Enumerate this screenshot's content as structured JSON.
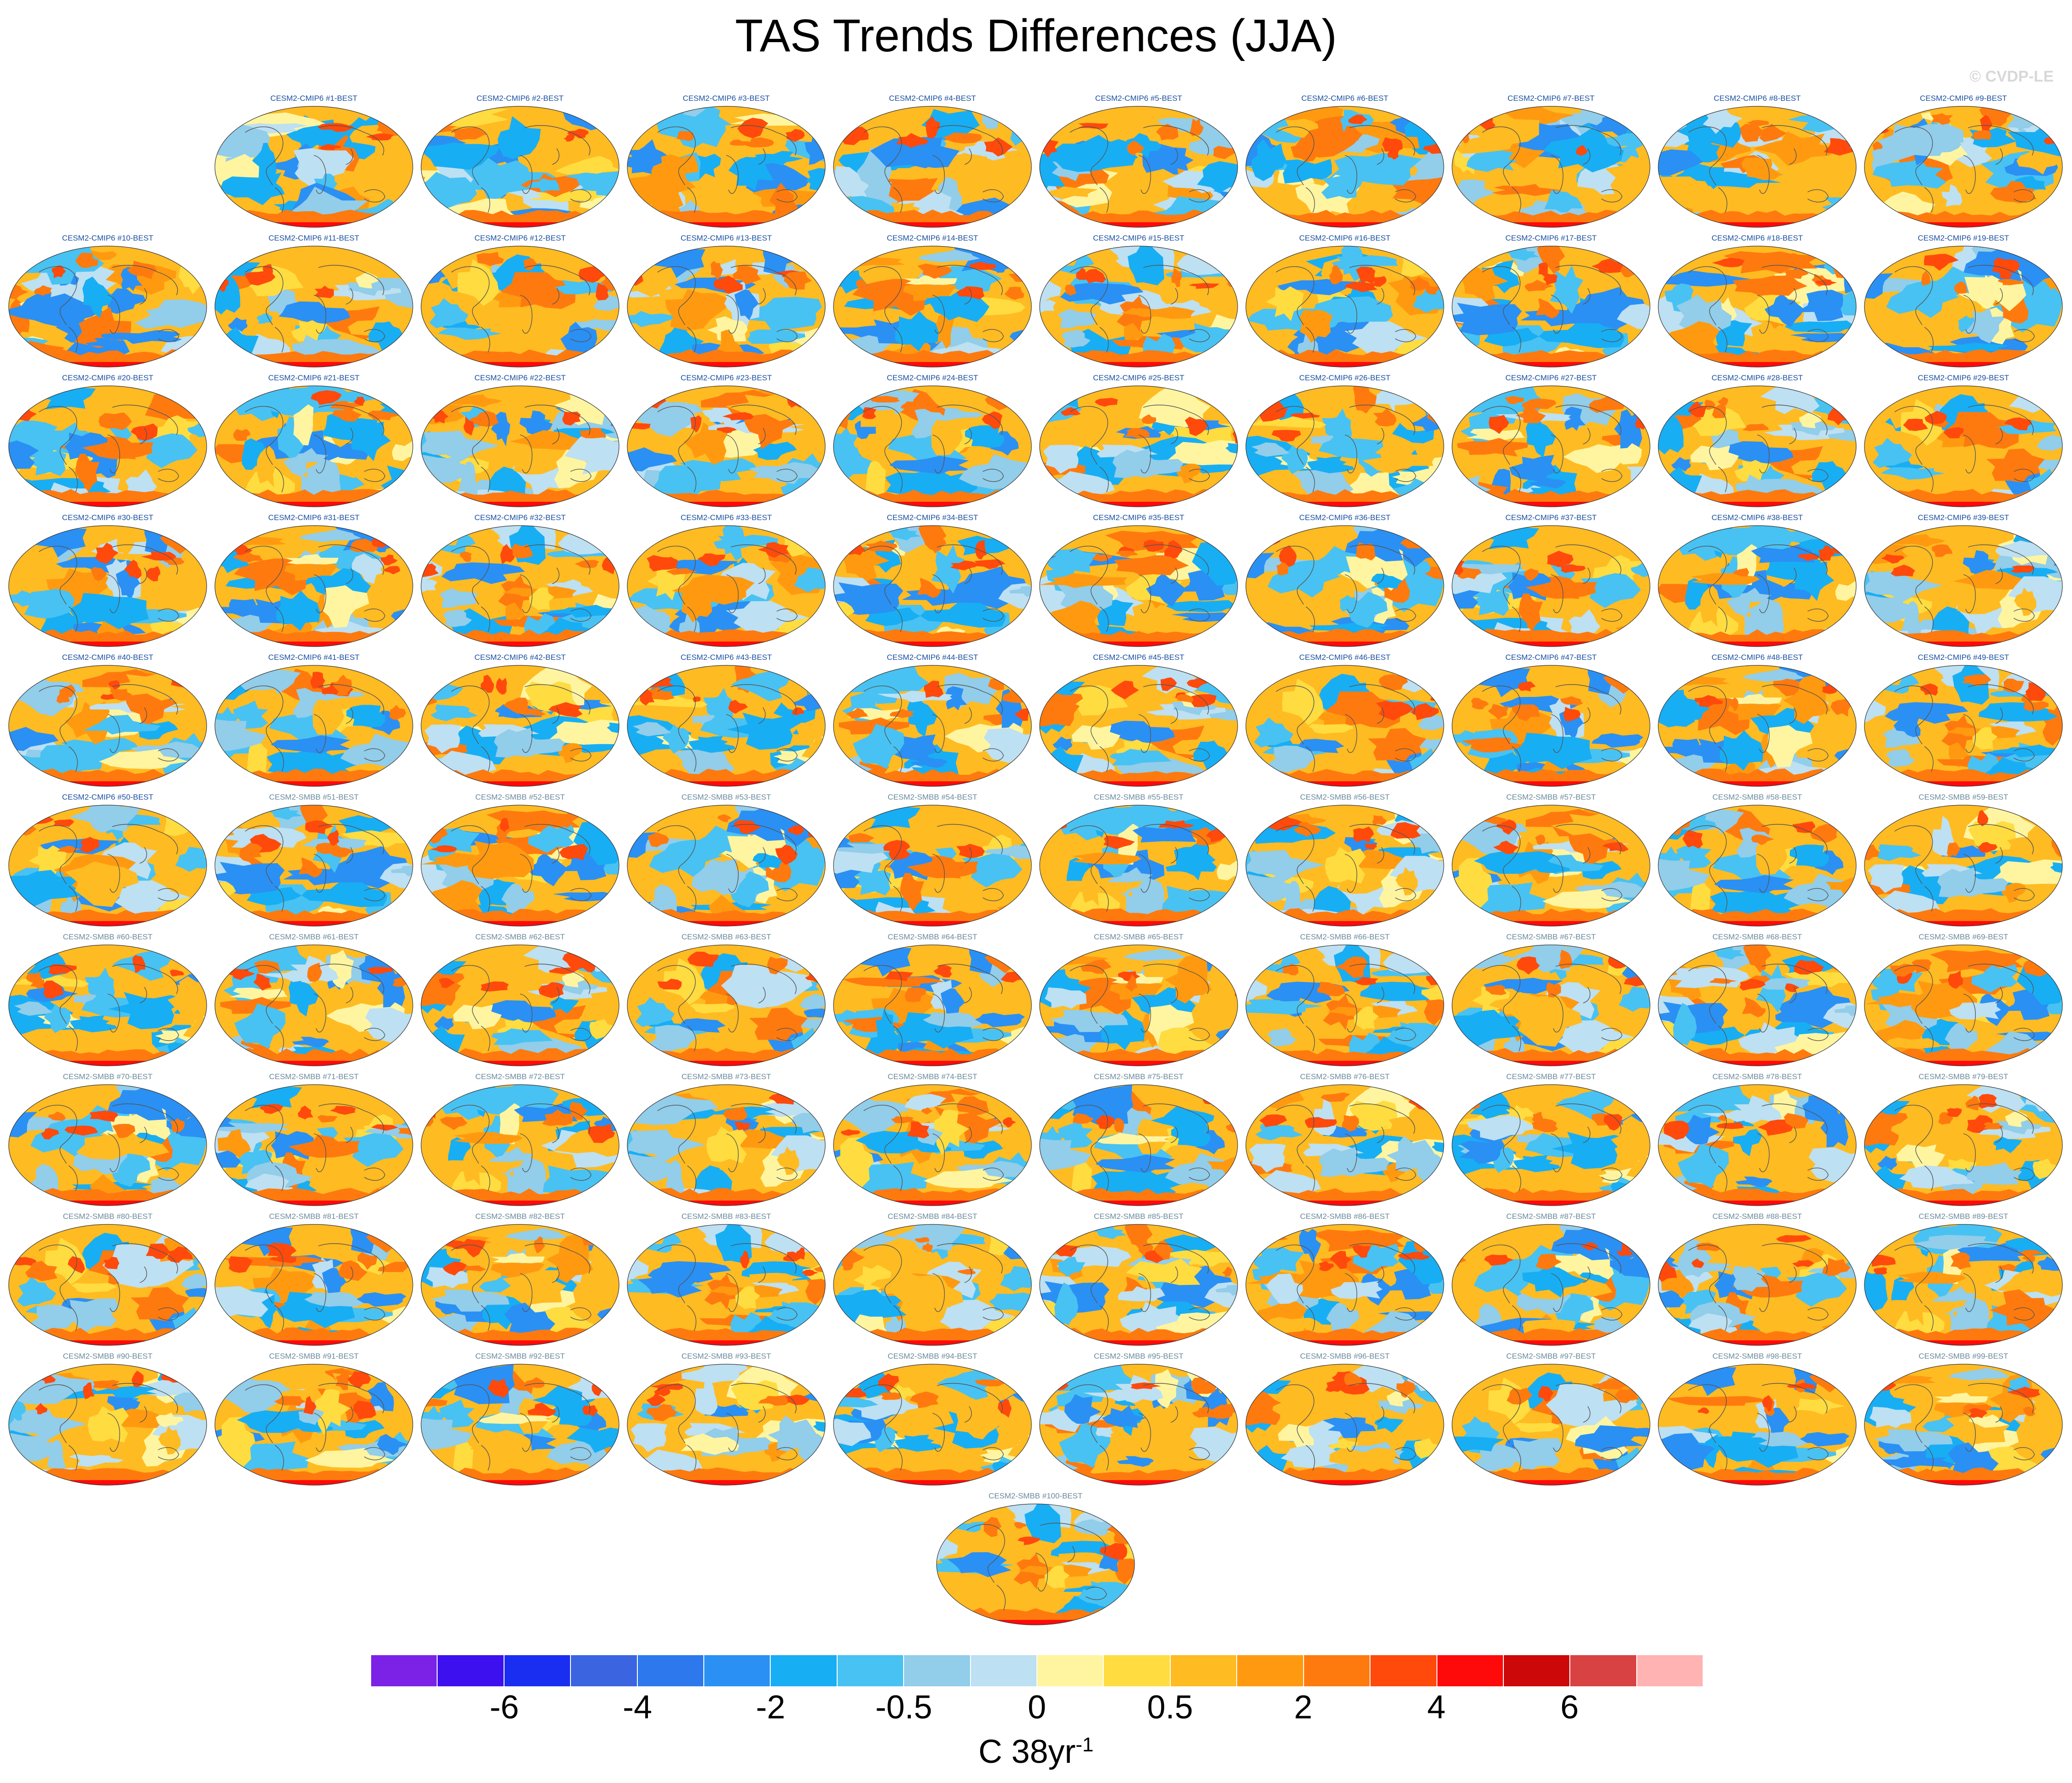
{
  "title": "TAS Trends Differences (JJA)",
  "watermark": "© CVDP-LE",
  "panels": [
    "CESM2-CMIP6 #1-BEST",
    "CESM2-CMIP6 #2-BEST",
    "CESM2-CMIP6 #3-BEST",
    "CESM2-CMIP6 #4-BEST",
    "CESM2-CMIP6 #5-BEST",
    "CESM2-CMIP6 #6-BEST",
    "CESM2-CMIP6 #7-BEST",
    "CESM2-CMIP6 #8-BEST",
    "CESM2-CMIP6 #9-BEST",
    "CESM2-CMIP6 #10-BEST",
    "CESM2-CMIP6 #11-BEST",
    "CESM2-CMIP6 #12-BEST",
    "CESM2-CMIP6 #13-BEST",
    "CESM2-CMIP6 #14-BEST",
    "CESM2-CMIP6 #15-BEST",
    "CESM2-CMIP6 #16-BEST",
    "CESM2-CMIP6 #17-BEST",
    "CESM2-CMIP6 #18-BEST",
    "CESM2-CMIP6 #19-BEST",
    "CESM2-CMIP6 #20-BEST",
    "CESM2-CMIP6 #21-BEST",
    "CESM2-CMIP6 #22-BEST",
    "CESM2-CMIP6 #23-BEST",
    "CESM2-CMIP6 #24-BEST",
    "CESM2-CMIP6 #25-BEST",
    "CESM2-CMIP6 #26-BEST",
    "CESM2-CMIP6 #27-BEST",
    "CESM2-CMIP6 #28-BEST",
    "CESM2-CMIP6 #29-BEST",
    "CESM2-CMIP6 #30-BEST",
    "CESM2-CMIP6 #31-BEST",
    "CESM2-CMIP6 #32-BEST",
    "CESM2-CMIP6 #33-BEST",
    "CESM2-CMIP6 #34-BEST",
    "CESM2-CMIP6 #35-BEST",
    "CESM2-CMIP6 #36-BEST",
    "CESM2-CMIP6 #37-BEST",
    "CESM2-CMIP6 #38-BEST",
    "CESM2-CMIP6 #39-BEST",
    "CESM2-CMIP6 #40-BEST",
    "CESM2-CMIP6 #41-BEST",
    "CESM2-CMIP6 #42-BEST",
    "CESM2-CMIP6 #43-BEST",
    "CESM2-CMIP6 #44-BEST",
    "CESM2-CMIP6 #45-BEST",
    "CESM2-CMIP6 #46-BEST",
    "CESM2-CMIP6 #47-BEST",
    "CESM2-CMIP6 #48-BEST",
    "CESM2-CMIP6 #49-BEST",
    "CESM2-CMIP6 #50-BEST",
    "CESM2-SMBB #51-BEST",
    "CESM2-SMBB #52-BEST",
    "CESM2-SMBB #53-BEST",
    "CESM2-SMBB #54-BEST",
    "CESM2-SMBB #55-BEST",
    "CESM2-SMBB #56-BEST",
    "CESM2-SMBB #57-BEST",
    "CESM2-SMBB #58-BEST",
    "CESM2-SMBB #59-BEST",
    "CESM2-SMBB #60-BEST",
    "CESM2-SMBB #61-BEST",
    "CESM2-SMBB #62-BEST",
    "CESM2-SMBB #63-BEST",
    "CESM2-SMBB #64-BEST",
    "CESM2-SMBB #65-BEST",
    "CESM2-SMBB #66-BEST",
    "CESM2-SMBB #67-BEST",
    "CESM2-SMBB #68-BEST",
    "CESM2-SMBB #69-BEST",
    "CESM2-SMBB #70-BEST",
    "CESM2-SMBB #71-BEST",
    "CESM2-SMBB #72-BEST",
    "CESM2-SMBB #73-BEST",
    "CESM2-SMBB #74-BEST",
    "CESM2-SMBB #75-BEST",
    "CESM2-SMBB #76-BEST",
    "CESM2-SMBB #77-BEST",
    "CESM2-SMBB #78-BEST",
    "CESM2-SMBB #79-BEST",
    "CESM2-SMBB #80-BEST",
    "CESM2-SMBB #81-BEST",
    "CESM2-SMBB #82-BEST",
    "CESM2-SMBB #83-BEST",
    "CESM2-SMBB #84-BEST",
    "CESM2-SMBB #85-BEST",
    "CESM2-SMBB #86-BEST",
    "CESM2-SMBB #87-BEST",
    "CESM2-SMBB #88-BEST",
    "CESM2-SMBB #89-BEST",
    "CESM2-SMBB #90-BEST",
    "CESM2-SMBB #91-BEST",
    "CESM2-SMBB #92-BEST",
    "CESM2-SMBB #93-BEST",
    "CESM2-SMBB #94-BEST",
    "CESM2-SMBB #95-BEST",
    "CESM2-SMBB #96-BEST",
    "CESM2-SMBB #97-BEST",
    "CESM2-SMBB #98-BEST",
    "CESM2-SMBB #99-BEST",
    "CESM2-SMBB #100-BEST"
  ],
  "label_colors": {
    "CMIP6": "#1a4fa0",
    "SMBB": "#6a8a9c"
  },
  "colorbar": {
    "colors": [
      "#7b22e6",
      "#3d10f0",
      "#1a2ef2",
      "#3a64e0",
      "#2e78ee",
      "#2a90f4",
      "#18aef4",
      "#48c2f2",
      "#92cdea",
      "#bde0f2",
      "#fff5a0",
      "#ffdc40",
      "#ffbb22",
      "#ff9a10",
      "#ff7a0e",
      "#ff4a0c",
      "#ff0a0a",
      "#cc0808",
      "#d84242",
      "#ffb3b3"
    ],
    "tick_labels": [
      "-6",
      "-4",
      "-2",
      "-0.5",
      "0",
      "0.5",
      "2",
      "4",
      "6"
    ],
    "units_main": "C 38yr",
    "units_exp": "-1"
  }
}
